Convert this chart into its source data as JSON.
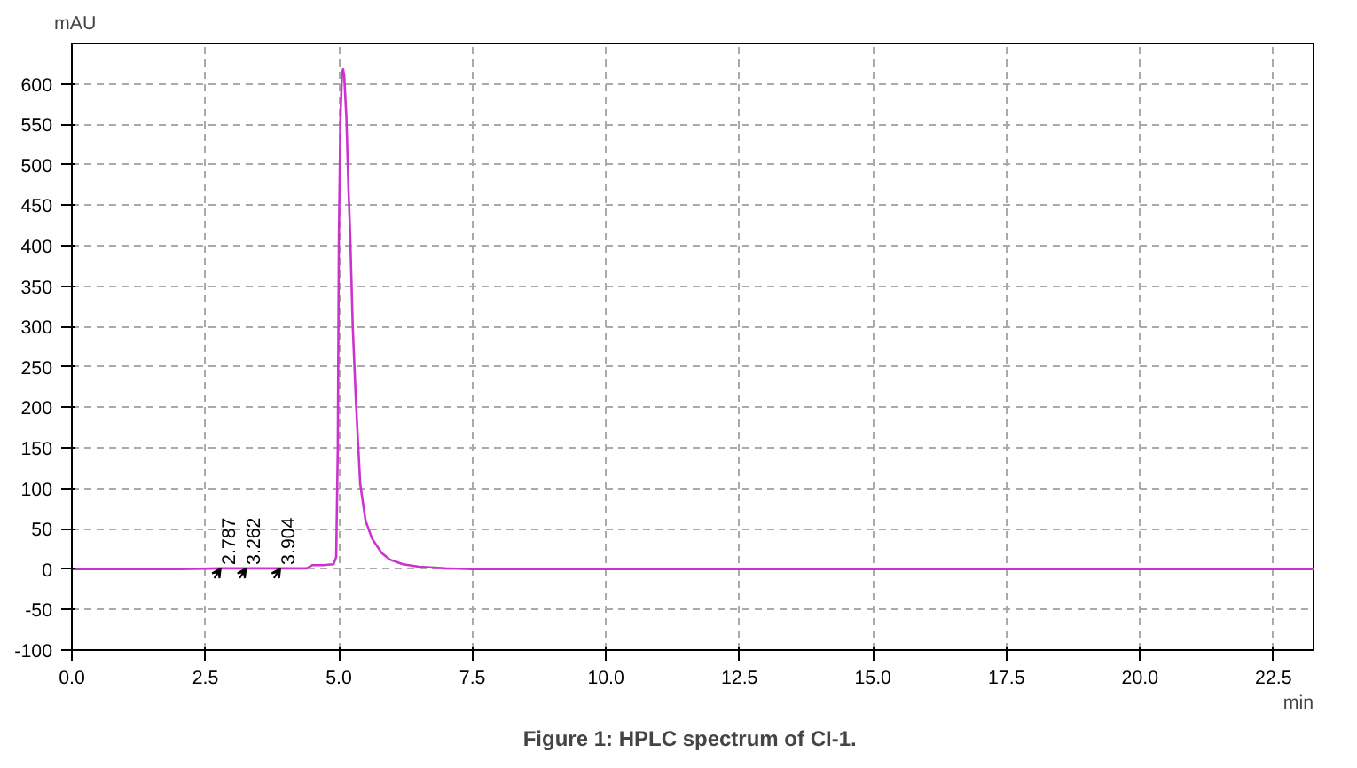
{
  "chart_data": {
    "type": "line",
    "title": "Figure 1:  HPLC spectrum of CI-1.",
    "xlabel": "min",
    "ylabel": "mAU",
    "x": [
      0,
      1.0,
      2.0,
      2.787,
      3.262,
      3.904,
      4.4,
      4.5,
      4.7,
      4.9,
      4.95,
      4.98,
      5.0,
      5.03,
      5.06,
      5.08,
      5.1,
      5.14,
      5.18,
      5.21,
      5.26,
      5.32,
      5.4,
      5.5,
      5.62,
      5.8,
      5.95,
      6.2,
      6.5,
      7.0,
      7.5,
      10.0,
      15.0,
      20.0,
      23.25
    ],
    "series": [
      {
        "color": "#cc33cc",
        "values": [
          0,
          0,
          0,
          1,
          1,
          1,
          1,
          5,
          5,
          6,
          15,
          150,
          410,
          560,
          615,
          618,
          610,
          560,
          470,
          417,
          300,
          206,
          105,
          60,
          38,
          20,
          12,
          6,
          3,
          1,
          0,
          0,
          0,
          0,
          0
        ]
      }
    ],
    "annotations": [
      {
        "text": "2.787",
        "x": 2.787,
        "y": 1
      },
      {
        "text": "3.262",
        "x": 3.262,
        "y": 1
      },
      {
        "text": "3.904",
        "x": 3.904,
        "y": 1
      }
    ],
    "xlim": [
      0,
      23.25
    ],
    "ylim": [
      -100,
      650
    ],
    "xticks": [
      {
        "value": 0,
        "label": "0.0"
      },
      {
        "value": 2.5,
        "label": "2.5"
      },
      {
        "value": 5,
        "label": "5.0"
      },
      {
        "value": 7.5,
        "label": "7.5"
      },
      {
        "value": 10,
        "label": "10.0"
      },
      {
        "value": 12.5,
        "label": "12.5"
      },
      {
        "value": 15,
        "label": "15.0"
      },
      {
        "value": 17.5,
        "label": "17.5"
      },
      {
        "value": 20,
        "label": "20.0"
      },
      {
        "value": 22.5,
        "label": "22.5"
      }
    ],
    "yticks": [
      -100,
      -50,
      0,
      50,
      100,
      150,
      200,
      250,
      300,
      350,
      400,
      450,
      500,
      550,
      600
    ],
    "grid": true,
    "marker": "none",
    "line_style": "solid"
  }
}
